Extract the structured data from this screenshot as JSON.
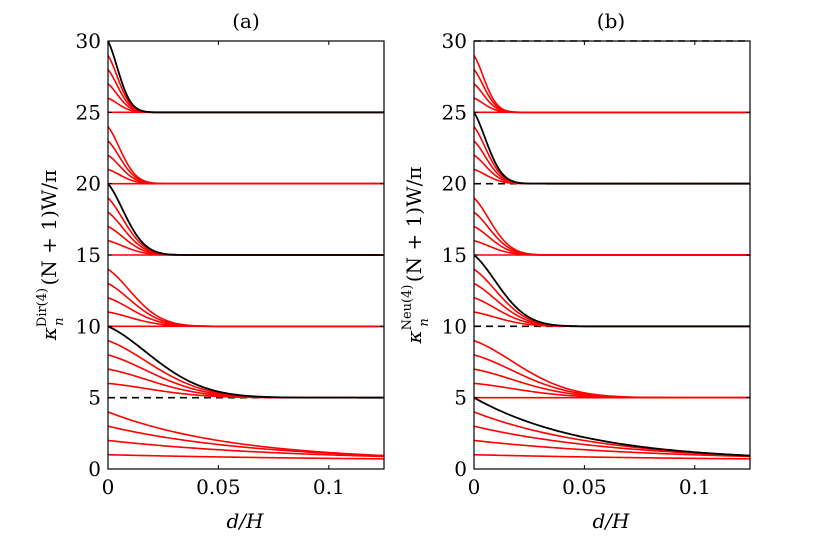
{
  "chart_data": [
    {
      "type": "line",
      "title": "(a)",
      "xlabel": "d/H",
      "ylabel": {
        "kappa": "κ",
        "sub": "n",
        "sup": "Dir(4)",
        "rest": "(N + 1)W/π"
      },
      "xlim": [
        0,
        0.125
      ],
      "ylim": [
        0,
        30
      ],
      "xticks": [
        0,
        0.05,
        0.1
      ],
      "xtick_labels": [
        "0",
        "0.05",
        "0.1"
      ],
      "yticks": [
        0,
        5,
        10,
        15,
        20,
        25,
        30
      ],
      "ytick_labels": [
        "0",
        "5",
        "10",
        "15",
        "20",
        "25",
        "30"
      ],
      "dashed_levels": [
        5
      ],
      "colors": {
        "red": "#ff0000",
        "black": "#000000"
      },
      "groups": [
        {
          "limit": 0,
          "starts": [
            1,
            2,
            3,
            4
          ],
          "black_start": null
        },
        {
          "limit": 5,
          "starts": [
            6,
            7,
            8,
            9
          ],
          "black_start": 10
        },
        {
          "limit": 10,
          "starts": [
            11,
            12,
            13,
            14
          ],
          "black_start": null
        },
        {
          "limit": 15,
          "starts": [
            16,
            17,
            18,
            19
          ],
          "black_start": 20
        },
        {
          "limit": 20,
          "starts": [
            21,
            22,
            23,
            24
          ],
          "black_start": null
        },
        {
          "limit": 25,
          "starts": [
            26,
            27,
            28,
            29
          ],
          "black_start": 30
        }
      ]
    },
    {
      "type": "line",
      "title": "(b)",
      "xlabel": "d/H",
      "ylabel": {
        "kappa": "κ",
        "sub": "n",
        "sup": "Neu(4)",
        "rest": "(N + 1)W/π"
      },
      "xlim": [
        0,
        0.125
      ],
      "ylim": [
        0,
        30
      ],
      "xticks": [
        0,
        0.05,
        0.1
      ],
      "xtick_labels": [
        "0",
        "0.05",
        "0.1"
      ],
      "yticks": [
        0,
        5,
        10,
        15,
        20,
        25,
        30
      ],
      "ytick_labels": [
        "0",
        "5",
        "10",
        "15",
        "20",
        "25",
        "30"
      ],
      "dashed_levels": [
        10,
        20,
        30
      ],
      "colors": {
        "red": "#ff0000",
        "black": "#000000"
      },
      "groups": [
        {
          "limit": 0,
          "starts": [
            1,
            2,
            3,
            4
          ],
          "black_start": 5
        },
        {
          "limit": 5,
          "starts": [
            6,
            7,
            8,
            9
          ],
          "black_start": null
        },
        {
          "limit": 10,
          "starts": [
            11,
            12,
            13,
            14
          ],
          "black_start": 15
        },
        {
          "limit": 15,
          "starts": [
            16,
            17,
            18,
            19
          ],
          "black_start": null
        },
        {
          "limit": 20,
          "starts": [
            21,
            22,
            23,
            24
          ],
          "black_start": 25
        },
        {
          "limit": 25,
          "starts": [
            26,
            27,
            28,
            29
          ],
          "black_start": null
        }
      ]
    }
  ]
}
